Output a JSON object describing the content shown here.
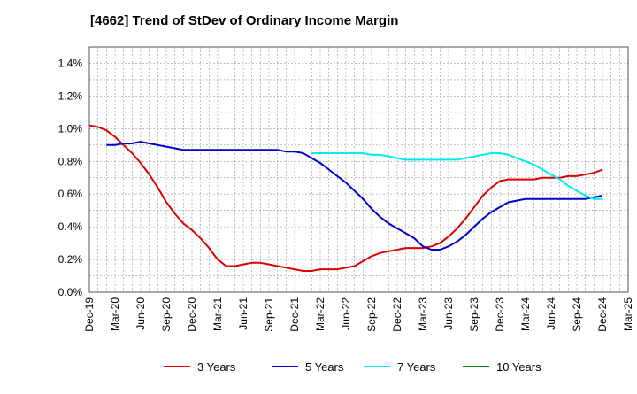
{
  "chart_data": {
    "type": "line",
    "title": "[4662]  Trend of StDev of Ordinary Income Margin",
    "xlabel": "",
    "ylabel": "",
    "x_ticks": [
      "Dec-19",
      "Mar-20",
      "Jun-20",
      "Sep-20",
      "Dec-20",
      "Mar-21",
      "Jun-21",
      "Sep-21",
      "Dec-21",
      "Mar-22",
      "Jun-22",
      "Sep-22",
      "Dec-22",
      "Mar-23",
      "Jun-23",
      "Sep-23",
      "Dec-23",
      "Mar-24",
      "Jun-24",
      "Sep-24",
      "Dec-24",
      "Mar-25"
    ],
    "y_ticks": [
      "0.0%",
      "0.2%",
      "0.4%",
      "0.6%",
      "0.8%",
      "1.0%",
      "1.2%",
      "1.4%"
    ],
    "ylim": [
      0,
      1.5
    ],
    "grid": true,
    "legend_position": "bottom",
    "series": [
      {
        "name": "3 Years",
        "color": "#dd0000",
        "values": [
          [
            "2019-12",
            1.02
          ],
          [
            "2020-01",
            1.01
          ],
          [
            "2020-02",
            0.99
          ],
          [
            "2020-03",
            0.95
          ],
          [
            "2020-04",
            0.9
          ],
          [
            "2020-05",
            0.85
          ],
          [
            "2020-06",
            0.79
          ],
          [
            "2020-07",
            0.72
          ],
          [
            "2020-08",
            0.64
          ],
          [
            "2020-09",
            0.55
          ],
          [
            "2020-10",
            0.48
          ],
          [
            "2020-11",
            0.42
          ],
          [
            "2020-12",
            0.38
          ],
          [
            "2021-01",
            0.33
          ],
          [
            "2021-02",
            0.27
          ],
          [
            "2021-03",
            0.2
          ],
          [
            "2021-04",
            0.16
          ],
          [
            "2021-05",
            0.16
          ],
          [
            "2021-06",
            0.17
          ],
          [
            "2021-07",
            0.18
          ],
          [
            "2021-08",
            0.18
          ],
          [
            "2021-09",
            0.17
          ],
          [
            "2021-10",
            0.16
          ],
          [
            "2021-11",
            0.15
          ],
          [
            "2021-12",
            0.14
          ],
          [
            "2022-01",
            0.13
          ],
          [
            "2022-02",
            0.13
          ],
          [
            "2022-03",
            0.14
          ],
          [
            "2022-04",
            0.14
          ],
          [
            "2022-05",
            0.14
          ],
          [
            "2022-06",
            0.15
          ],
          [
            "2022-07",
            0.16
          ],
          [
            "2022-08",
            0.19
          ],
          [
            "2022-09",
            0.22
          ],
          [
            "2022-10",
            0.24
          ],
          [
            "2022-11",
            0.25
          ],
          [
            "2022-12",
            0.26
          ],
          [
            "2023-01",
            0.27
          ],
          [
            "2023-02",
            0.27
          ],
          [
            "2023-03",
            0.27
          ],
          [
            "2023-04",
            0.28
          ],
          [
            "2023-05",
            0.3
          ],
          [
            "2023-06",
            0.34
          ],
          [
            "2023-07",
            0.39
          ],
          [
            "2023-08",
            0.45
          ],
          [
            "2023-09",
            0.52
          ],
          [
            "2023-10",
            0.59
          ],
          [
            "2023-11",
            0.64
          ],
          [
            "2023-12",
            0.68
          ],
          [
            "2024-01",
            0.69
          ],
          [
            "2024-02",
            0.69
          ],
          [
            "2024-03",
            0.69
          ],
          [
            "2024-04",
            0.69
          ],
          [
            "2024-05",
            0.7
          ],
          [
            "2024-06",
            0.7
          ],
          [
            "2024-07",
            0.7
          ],
          [
            "2024-08",
            0.71
          ],
          [
            "2024-09",
            0.71
          ],
          [
            "2024-10",
            0.72
          ],
          [
            "2024-11",
            0.73
          ],
          [
            "2024-12",
            0.75
          ]
        ]
      },
      {
        "name": "5 Years",
        "color": "#0000cc",
        "values": [
          [
            "2020-02",
            0.9
          ],
          [
            "2020-03",
            0.9
          ],
          [
            "2020-04",
            0.91
          ],
          [
            "2020-05",
            0.91
          ],
          [
            "2020-06",
            0.92
          ],
          [
            "2020-07",
            0.91
          ],
          [
            "2020-08",
            0.9
          ],
          [
            "2020-09",
            0.89
          ],
          [
            "2020-10",
            0.88
          ],
          [
            "2020-11",
            0.87
          ],
          [
            "2020-12",
            0.87
          ],
          [
            "2021-01",
            0.87
          ],
          [
            "2021-02",
            0.87
          ],
          [
            "2021-03",
            0.87
          ],
          [
            "2021-04",
            0.87
          ],
          [
            "2021-05",
            0.87
          ],
          [
            "2021-06",
            0.87
          ],
          [
            "2021-07",
            0.87
          ],
          [
            "2021-08",
            0.87
          ],
          [
            "2021-09",
            0.87
          ],
          [
            "2021-10",
            0.87
          ],
          [
            "2021-11",
            0.86
          ],
          [
            "2021-12",
            0.86
          ],
          [
            "2022-01",
            0.85
          ],
          [
            "2022-02",
            0.82
          ],
          [
            "2022-03",
            0.79
          ],
          [
            "2022-04",
            0.75
          ],
          [
            "2022-05",
            0.71
          ],
          [
            "2022-06",
            0.67
          ],
          [
            "2022-07",
            0.62
          ],
          [
            "2022-08",
            0.57
          ],
          [
            "2022-09",
            0.51
          ],
          [
            "2022-10",
            0.46
          ],
          [
            "2022-11",
            0.42
          ],
          [
            "2022-12",
            0.39
          ],
          [
            "2023-01",
            0.36
          ],
          [
            "2023-02",
            0.33
          ],
          [
            "2023-03",
            0.28
          ],
          [
            "2023-04",
            0.26
          ],
          [
            "2023-05",
            0.26
          ],
          [
            "2023-06",
            0.28
          ],
          [
            "2023-07",
            0.31
          ],
          [
            "2023-08",
            0.35
          ],
          [
            "2023-09",
            0.4
          ],
          [
            "2023-10",
            0.45
          ],
          [
            "2023-11",
            0.49
          ],
          [
            "2023-12",
            0.52
          ],
          [
            "2024-01",
            0.55
          ],
          [
            "2024-02",
            0.56
          ],
          [
            "2024-03",
            0.57
          ],
          [
            "2024-04",
            0.57
          ],
          [
            "2024-05",
            0.57
          ],
          [
            "2024-06",
            0.57
          ],
          [
            "2024-07",
            0.57
          ],
          [
            "2024-08",
            0.57
          ],
          [
            "2024-09",
            0.57
          ],
          [
            "2024-10",
            0.57
          ],
          [
            "2024-11",
            0.58
          ],
          [
            "2024-12",
            0.59
          ]
        ]
      },
      {
        "name": "7 Years",
        "color": "#00eeee",
        "values": [
          [
            "2022-02",
            0.85
          ],
          [
            "2022-03",
            0.85
          ],
          [
            "2022-04",
            0.85
          ],
          [
            "2022-05",
            0.85
          ],
          [
            "2022-06",
            0.85
          ],
          [
            "2022-07",
            0.85
          ],
          [
            "2022-08",
            0.85
          ],
          [
            "2022-09",
            0.84
          ],
          [
            "2022-10",
            0.84
          ],
          [
            "2022-11",
            0.83
          ],
          [
            "2022-12",
            0.82
          ],
          [
            "2023-01",
            0.81
          ],
          [
            "2023-02",
            0.81
          ],
          [
            "2023-03",
            0.81
          ],
          [
            "2023-04",
            0.81
          ],
          [
            "2023-05",
            0.81
          ],
          [
            "2023-06",
            0.81
          ],
          [
            "2023-07",
            0.81
          ],
          [
            "2023-08",
            0.82
          ],
          [
            "2023-09",
            0.83
          ],
          [
            "2023-10",
            0.84
          ],
          [
            "2023-11",
            0.85
          ],
          [
            "2023-12",
            0.85
          ],
          [
            "2024-01",
            0.84
          ],
          [
            "2024-02",
            0.82
          ],
          [
            "2024-03",
            0.8
          ],
          [
            "2024-04",
            0.78
          ],
          [
            "2024-05",
            0.75
          ],
          [
            "2024-06",
            0.72
          ],
          [
            "2024-07",
            0.69
          ],
          [
            "2024-08",
            0.65
          ],
          [
            "2024-09",
            0.62
          ],
          [
            "2024-10",
            0.59
          ],
          [
            "2024-11",
            0.57
          ],
          [
            "2024-12",
            0.57
          ]
        ]
      },
      {
        "name": "10 Years",
        "color": "#008800",
        "values": []
      }
    ]
  }
}
